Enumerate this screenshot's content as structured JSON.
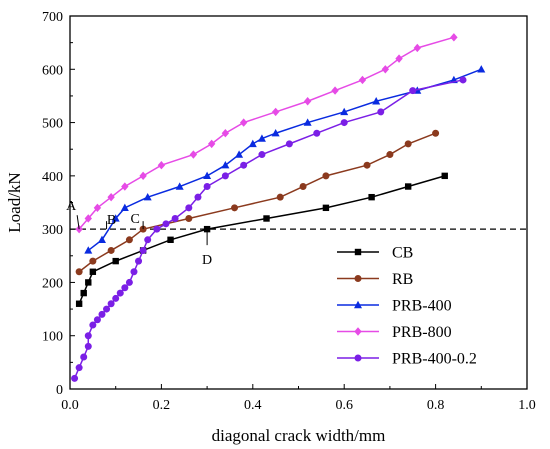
{
  "chart_data": {
    "type": "line",
    "xlabel": "diagonal crack width/mm",
    "ylabel": "Load/kN",
    "xlim": [
      0.0,
      1.0
    ],
    "ylim": [
      0,
      700
    ],
    "xticks": [
      "0.0",
      "0.2",
      "0.4",
      "0.6",
      "0.8",
      "1.0"
    ],
    "yticks": [
      "0",
      "100",
      "200",
      "300",
      "400",
      "500",
      "600",
      "700"
    ],
    "grid": false,
    "legend_position": "lower-right",
    "reference_line": {
      "y": 300,
      "style": "dashed"
    },
    "annotations": [
      {
        "label": "A",
        "x": 0.02,
        "y": 300
      },
      {
        "label": "B",
        "x": 0.08,
        "y": 300
      },
      {
        "label": "C",
        "x": 0.16,
        "y": 300
      },
      {
        "label": "D",
        "x": 0.3,
        "y": 300
      }
    ],
    "series": [
      {
        "name": "CB",
        "color": "#000000",
        "marker": "square",
        "x": [
          0.02,
          0.03,
          0.04,
          0.05,
          0.1,
          0.16,
          0.22,
          0.3,
          0.43,
          0.56,
          0.66,
          0.74,
          0.82
        ],
        "y": [
          160,
          180,
          200,
          220,
          240,
          260,
          280,
          300,
          320,
          340,
          360,
          380,
          400
        ]
      },
      {
        "name": "RB",
        "color": "#8B3A1E",
        "marker": "circle",
        "x": [
          0.02,
          0.05,
          0.09,
          0.13,
          0.16,
          0.26,
          0.36,
          0.46,
          0.51,
          0.56,
          0.65,
          0.7,
          0.74,
          0.8
        ],
        "y": [
          220,
          240,
          260,
          280,
          300,
          320,
          340,
          360,
          380,
          400,
          420,
          440,
          460,
          480
        ]
      },
      {
        "name": "PRB-400",
        "color": "#0A2BE0",
        "marker": "triangle",
        "x": [
          0.04,
          0.07,
          0.1,
          0.12,
          0.17,
          0.24,
          0.3,
          0.34,
          0.37,
          0.4,
          0.42,
          0.45,
          0.52,
          0.6,
          0.67,
          0.76,
          0.84,
          0.9
        ],
        "y": [
          260,
          280,
          320,
          340,
          360,
          380,
          400,
          420,
          440,
          460,
          470,
          480,
          500,
          520,
          540,
          560,
          580,
          600
        ]
      },
      {
        "name": "PRB-800",
        "color": "#E64BE6",
        "marker": "diamond",
        "x": [
          0.02,
          0.04,
          0.06,
          0.09,
          0.12,
          0.16,
          0.2,
          0.27,
          0.31,
          0.34,
          0.38,
          0.45,
          0.52,
          0.58,
          0.64,
          0.69,
          0.72,
          0.76,
          0.84
        ],
        "y": [
          300,
          320,
          340,
          360,
          380,
          400,
          420,
          440,
          460,
          480,
          500,
          520,
          540,
          560,
          580,
          600,
          620,
          640,
          660
        ]
      },
      {
        "name": "PRB-400-0.2",
        "color": "#7B1FE6",
        "marker": "circle",
        "x": [
          0.01,
          0.02,
          0.03,
          0.04,
          0.04,
          0.05,
          0.06,
          0.07,
          0.08,
          0.09,
          0.1,
          0.11,
          0.12,
          0.13,
          0.14,
          0.15,
          0.16,
          0.17,
          0.19,
          0.21,
          0.23,
          0.26,
          0.28,
          0.3,
          0.34,
          0.38,
          0.42,
          0.48,
          0.54,
          0.6,
          0.68,
          0.75,
          0.86
        ],
        "y": [
          20,
          40,
          60,
          80,
          100,
          120,
          130,
          140,
          150,
          160,
          170,
          180,
          190,
          200,
          220,
          240,
          260,
          280,
          300,
          310,
          320,
          340,
          360,
          380,
          400,
          420,
          440,
          460,
          480,
          500,
          520,
          560,
          580
        ]
      }
    ]
  }
}
